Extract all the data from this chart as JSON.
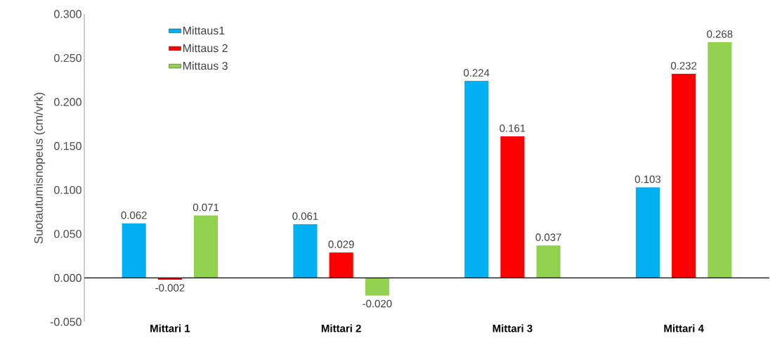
{
  "chart_data": {
    "type": "bar",
    "ylabel": "Suotautumisnopeus (cm/vrk)",
    "categories": [
      "Mittari 1",
      "Mittari 2",
      "Mittari 3",
      "Mittari 4"
    ],
    "series": [
      {
        "name": "Mittaus1",
        "color": "#00b0f0",
        "values": [
          0.062,
          0.061,
          0.224,
          0.103
        ],
        "value_labels": [
          "0.062",
          "0.061",
          "0.224",
          "0.103"
        ]
      },
      {
        "name": "Mittaus 2",
        "color": "#ff0000",
        "values": [
          -0.002,
          0.029,
          0.161,
          0.232
        ],
        "value_labels": [
          "-0.002",
          "0.029",
          "0.161",
          "0.232"
        ]
      },
      {
        "name": "Mittaus 3",
        "color": "#92d050",
        "values": [
          0.071,
          -0.02,
          0.037,
          0.268
        ],
        "value_labels": [
          "0.071",
          "-0.020",
          "0.037",
          "0.268"
        ]
      }
    ],
    "ylim": [
      -0.05,
      0.3
    ],
    "yticks": [
      {
        "value": -0.05,
        "label": "-0.050"
      },
      {
        "value": 0,
        "label": "0.000"
      },
      {
        "value": 0.05,
        "label": "0.050"
      },
      {
        "value": 0.1,
        "label": "0.100"
      },
      {
        "value": 0.15,
        "label": "0.150"
      },
      {
        "value": 0.2,
        "label": "0.200"
      },
      {
        "value": 0.25,
        "label": "0.250"
      },
      {
        "value": 0.3,
        "label": "0.300"
      }
    ],
    "legend": "top left"
  }
}
